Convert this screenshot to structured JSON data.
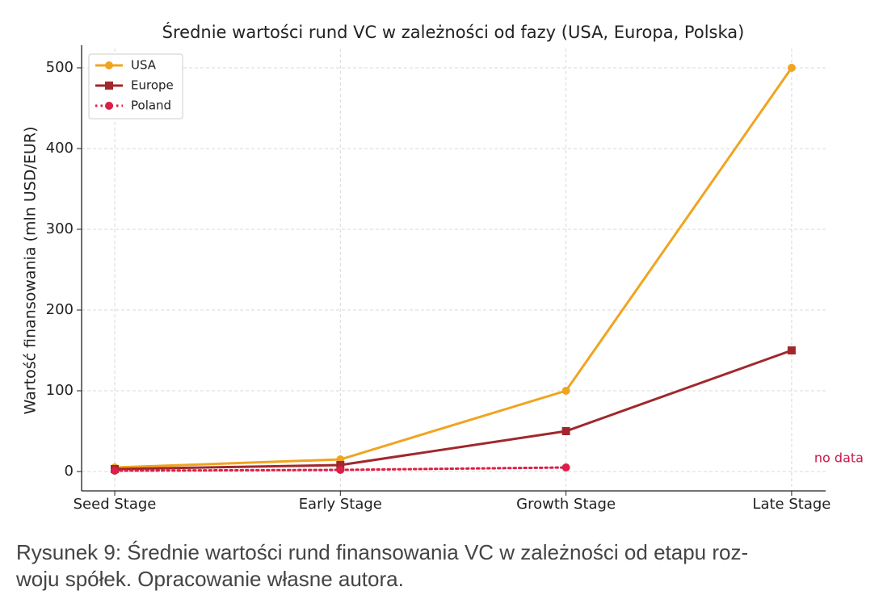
{
  "chart_data": {
    "type": "line",
    "title": "Średnie wartości rund VC w zależności od fazy (USA, Europa, Polska)",
    "y_label": "Wartość finansowania (mln USD/EUR)",
    "categories": [
      "Seed Stage",
      "Early Stage",
      "Growth Stage",
      "Late Stage"
    ],
    "series": [
      {
        "name": "USA",
        "color": "#f0a420",
        "marker": "circle",
        "linestyle": "solid",
        "values": [
          5,
          15,
          100,
          500
        ]
      },
      {
        "name": "Europe",
        "color": "#a0282c",
        "marker": "square",
        "linestyle": "solid",
        "values": [
          3,
          8,
          50,
          150
        ]
      },
      {
        "name": "Poland",
        "color": "#dc1f48",
        "marker": "circle",
        "linestyle": "dotted",
        "values": [
          1,
          2,
          5,
          null
        ]
      }
    ],
    "annotation": "no data",
    "annotation_color": "#c8174a",
    "ylim": [
      -24,
      524
    ],
    "yticks": [
      0,
      100,
      200,
      300,
      400,
      500
    ],
    "grid": true,
    "legend": "upper left"
  },
  "caption": [
    "Rysunek 9: Średnie wartości rund finansowania VC w zależności od etapu roz-",
    "woju spółek. Opracowanie własne autora."
  ]
}
